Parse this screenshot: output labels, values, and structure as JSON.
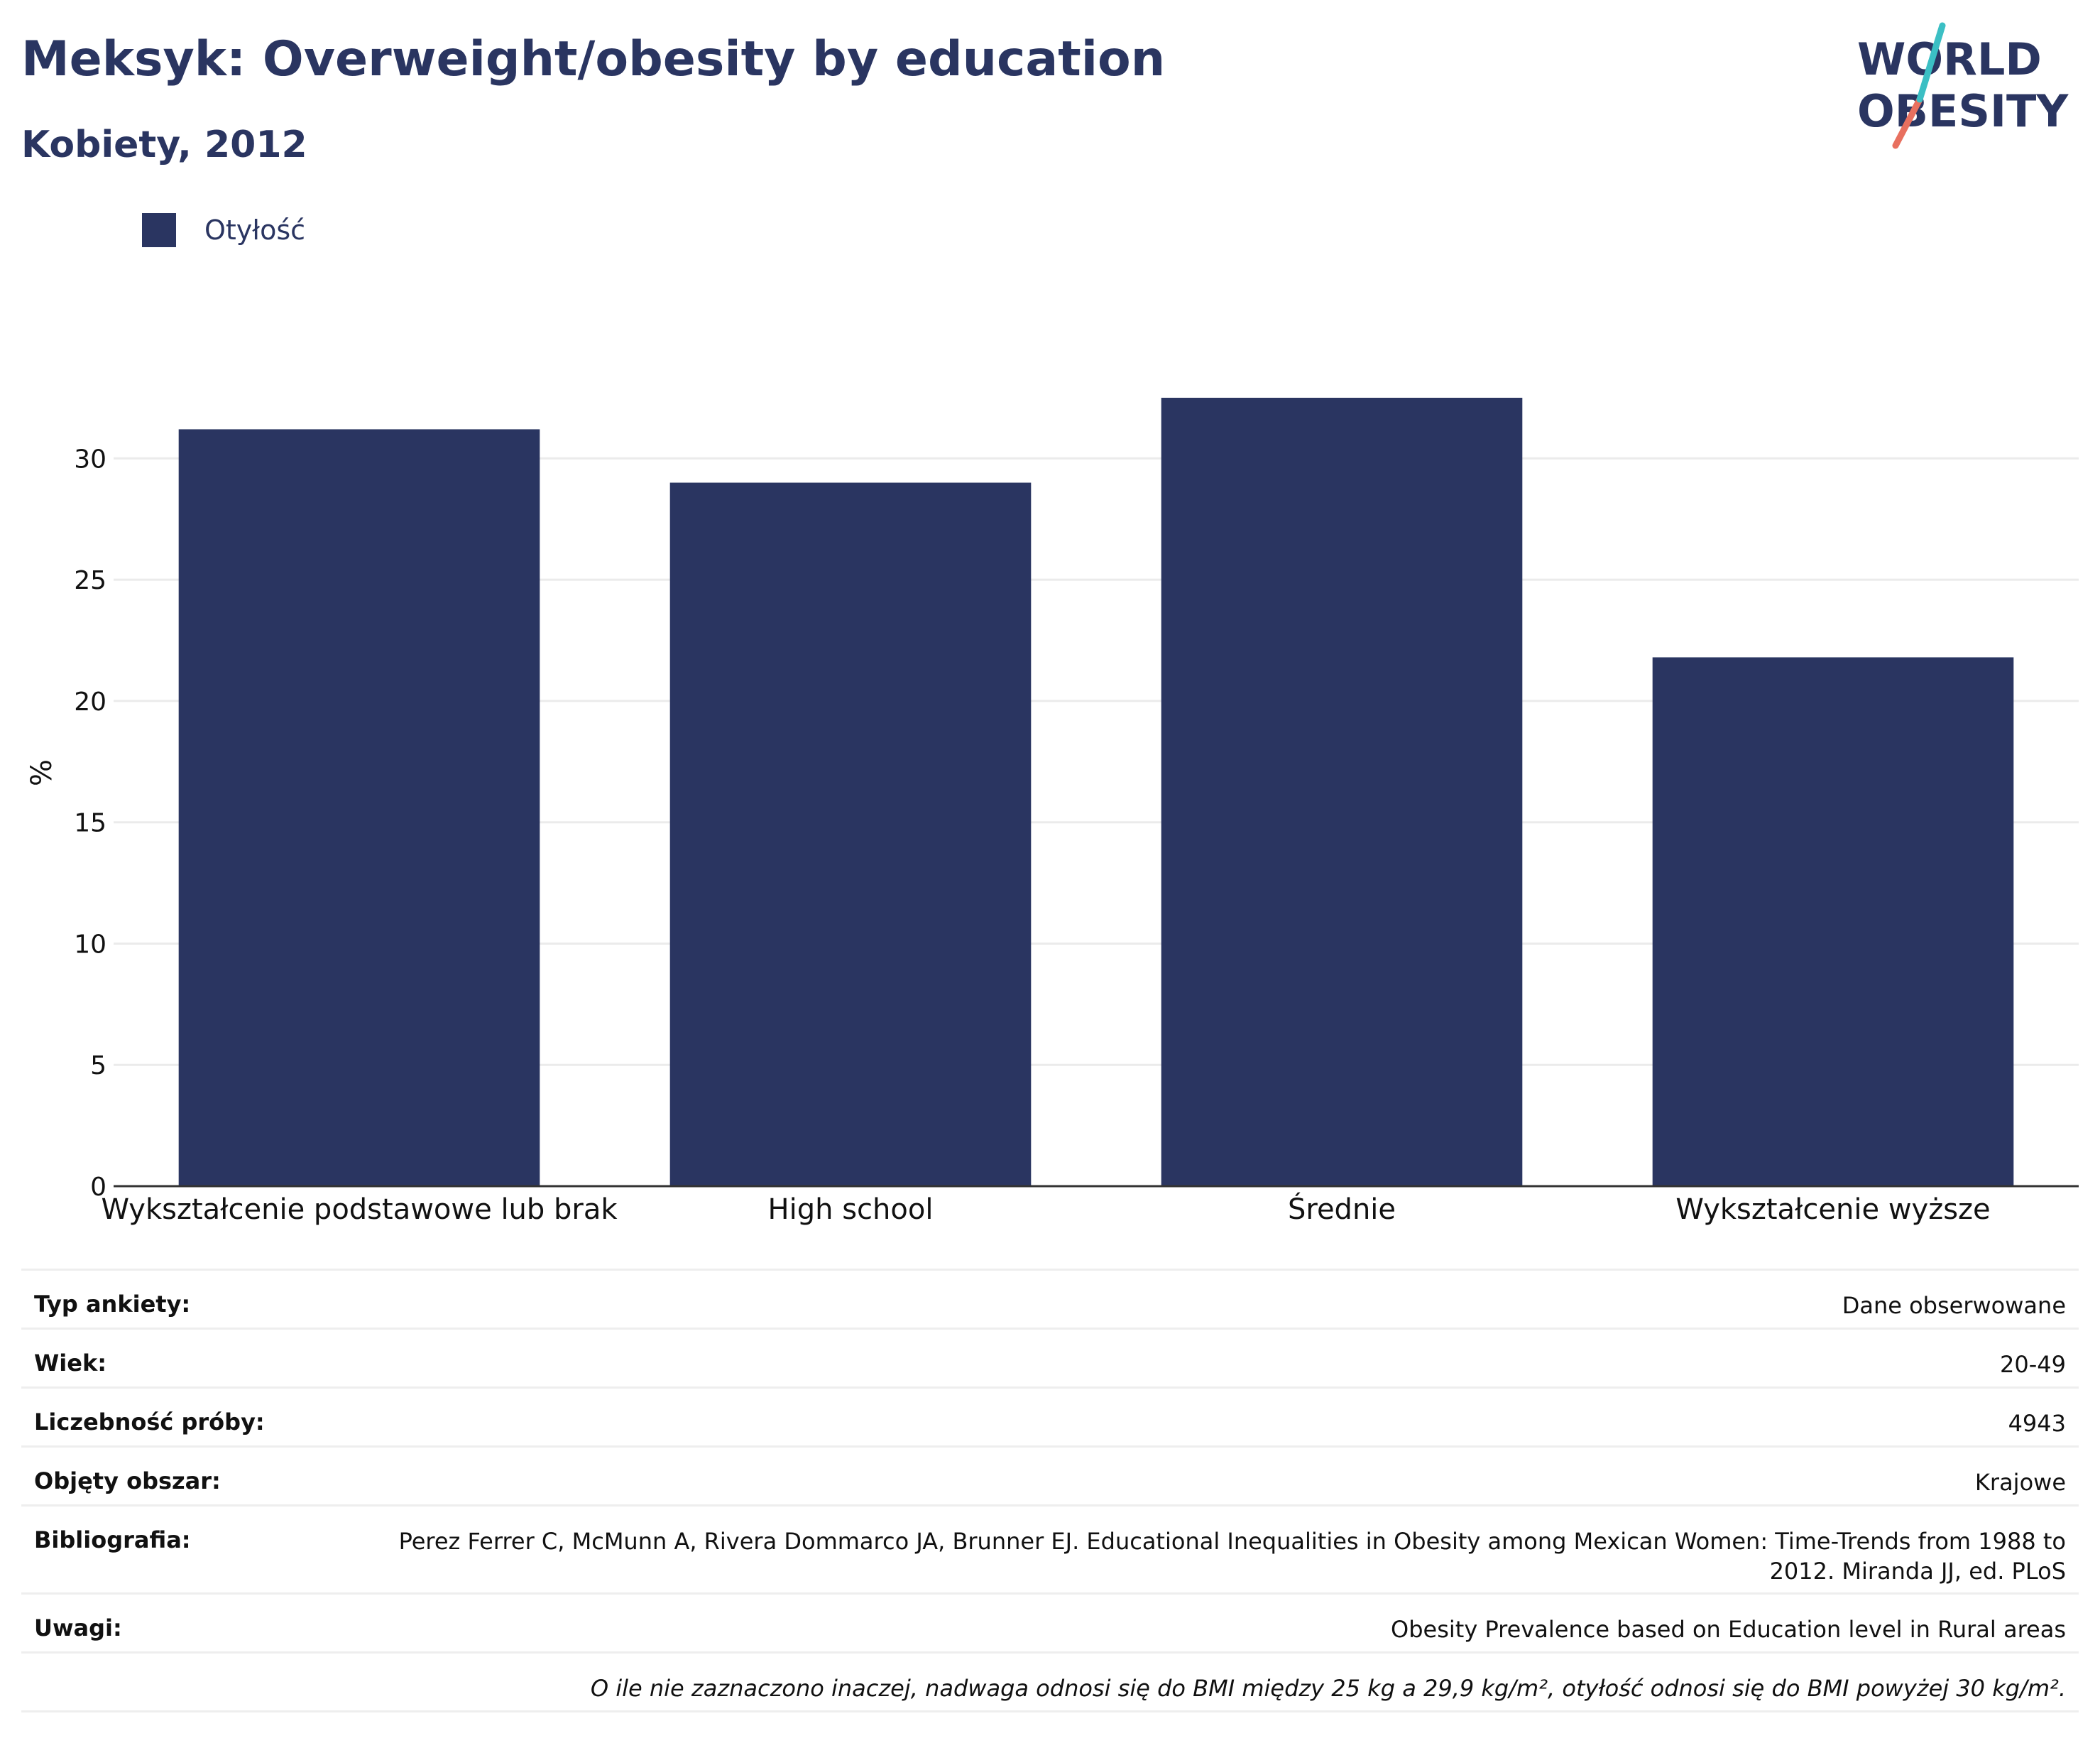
{
  "header": {
    "title": "Meksyk: Overweight/obesity by education",
    "subtitle": "Kobiety, 2012"
  },
  "logo": {
    "line1": "WORLD",
    "line2": "OBESITY"
  },
  "legend": {
    "label": "Otyłość",
    "color": "#2a3561"
  },
  "chart_data": {
    "type": "bar",
    "categories": [
      "Wykształcenie podstawowe lub brak",
      "High school",
      "Średnie",
      "Wykształcenie wyższe"
    ],
    "series": [
      {
        "name": "Otyłość",
        "values": [
          31.2,
          29.0,
          32.5,
          21.8
        ],
        "color": "#2a3561"
      }
    ],
    "ylabel": "%",
    "ylim": [
      0,
      32.5
    ],
    "yticks": [
      0,
      5,
      10,
      15,
      20,
      25,
      30
    ],
    "grid": true,
    "legend_position": "top-left"
  },
  "meta": {
    "survey_type": {
      "label": "Typ ankiety:",
      "value": "Dane obserwowane"
    },
    "age": {
      "label": "Wiek:",
      "value": "20-49"
    },
    "sample_size": {
      "label": "Liczebność próby:",
      "value": "4943"
    },
    "area": {
      "label": "Objęty obszar:",
      "value": "Krajowe"
    },
    "bibliography": {
      "label": "Bibliografia:",
      "value": "Perez Ferrer C, McMunn A, Rivera Dommarco JA, Brunner EJ. Educational Inequalities in Obesity among Mexican Women: Time-Trends from 1988 to 2012. Miranda JJ, ed. PLoS"
    },
    "notes": {
      "label": "Uwagi:",
      "value": "Obesity Prevalence based on Education level in Rural areas"
    },
    "footnote": "O ile nie zaznaczono inaczej, nadwaga odnosi się do BMI między 25 kg a 29,9 kg/m², otyłość odnosi się do BMI powyżej 30 kg/m²."
  }
}
